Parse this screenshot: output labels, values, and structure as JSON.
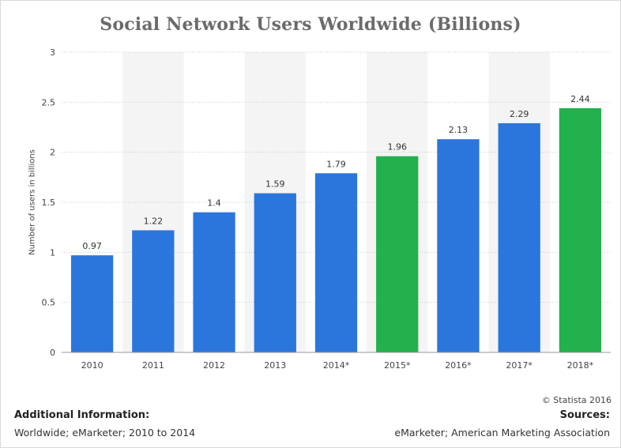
{
  "chart_data": {
    "type": "bar",
    "title": "Social Network Users Worldwide (Billions)",
    "ylabel": "Number of users in billions",
    "xlabel": "",
    "ylim": [
      0,
      3
    ],
    "yticks": [
      "0",
      "0.5",
      "1",
      "1.5",
      "2",
      "2.5",
      "3"
    ],
    "categories": [
      "2010",
      "2011",
      "2012",
      "2013",
      "2014*",
      "2015*",
      "2016*",
      "2017*",
      "2018*"
    ],
    "values": [
      0.97,
      1.22,
      1.4,
      1.59,
      1.79,
      1.96,
      2.13,
      2.29,
      2.44
    ],
    "value_labels": [
      "0.97",
      "1.22",
      "1.4",
      "1.59",
      "1.79",
      "1.96",
      "2.13",
      "2.29",
      "2.44"
    ],
    "bar_colors": [
      "#2a76dd",
      "#2a76dd",
      "#2a76dd",
      "#2a76dd",
      "#2a76dd",
      "#22b14c",
      "#2a76dd",
      "#2a76dd",
      "#22b14c"
    ],
    "grid": true,
    "alternating_band_color": "#f4f4f4"
  },
  "footer": {
    "credit": "© Statista 2016",
    "additional_title": "Additional Information:",
    "additional_text": "Worldwide; eMarketer; 2010 to 2014",
    "sources_title": "Sources:",
    "sources_text": "eMarketer; American Marketing Association"
  }
}
